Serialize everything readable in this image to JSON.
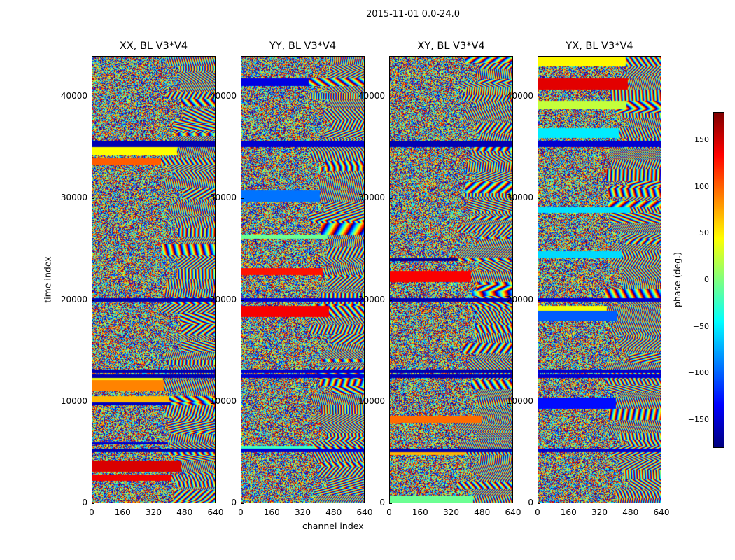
{
  "chart_data": {
    "type": "heatmap",
    "title": "2015-11-01 0.0-24.0",
    "xlabel": "channel index",
    "ylabel": "time index",
    "xlim": [
      0,
      640
    ],
    "ylim": [
      0,
      44000
    ],
    "xticks": [
      "0",
      "160",
      "320",
      "480",
      "640"
    ],
    "xtick_values": [
      0,
      160,
      320,
      480,
      640
    ],
    "yticks": [
      "0",
      "10000",
      "20000",
      "30000",
      "40000"
    ],
    "ytick_values": [
      0,
      10000,
      20000,
      30000,
      40000
    ],
    "colormap": "jet",
    "panels": [
      {
        "title": "XX, BL V3*V4",
        "polarization": "XX",
        "baseline": "V3*V4"
      },
      {
        "title": "YY, BL V3*V4",
        "polarization": "YY",
        "baseline": "V3*V4"
      },
      {
        "title": "XY, BL V3*V4",
        "polarization": "XY",
        "baseline": "V3*V4"
      },
      {
        "title": "YX, BL V3*V4",
        "polarization": "YX",
        "baseline": "V3*V4"
      }
    ],
    "colorbar": {
      "label": "phase (deg.)",
      "range": [
        -180,
        180
      ],
      "ticks": [
        "150",
        "100",
        "50",
        "0",
        "−50",
        "−100",
        "−150"
      ],
      "tick_values": [
        150,
        100,
        50,
        0,
        -50,
        -100,
        -150
      ],
      "footer": "......"
    },
    "flagged_rows_approx": [
      12500,
      13000,
      35300,
      35600,
      20000,
      5200
    ],
    "fringe_onset_channel_approx": 400
  }
}
